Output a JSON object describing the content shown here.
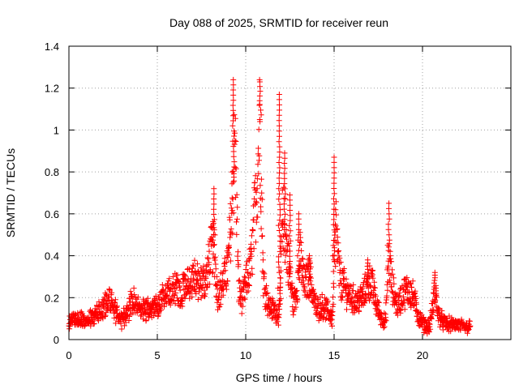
{
  "chart_data": {
    "type": "scatter",
    "title": "Day 088 of 2025, SRMTID for receiver reun",
    "xlabel": "GPS time / hours",
    "ylabel": "SRMTID / TECUs",
    "xlim": [
      0,
      25
    ],
    "ylim": [
      0,
      1.4
    ],
    "xticks": [
      0,
      5,
      10,
      15,
      20
    ],
    "xtick_labels": [
      "0",
      "5",
      "10",
      "15",
      "20"
    ],
    "yticks": [
      0,
      0.2,
      0.4,
      0.6,
      0.8,
      1.0,
      1.2,
      1.4
    ],
    "ytick_labels": [
      "0",
      "0.2",
      "0.4",
      "0.6",
      "0.8",
      "1",
      "1.2",
      "1.4"
    ],
    "grid": true,
    "marker": "+",
    "marker_color": "#ff0000",
    "x_range_of_data": [
      0,
      22.7
    ],
    "series": [
      {
        "name": "SRMTID",
        "approx_curve": {
          "x": [
            0.0,
            0.5,
            1.0,
            1.5,
            2.0,
            2.3,
            2.6,
            3.0,
            3.3,
            3.6,
            4.0,
            4.5,
            5.0,
            5.3,
            5.6,
            6.0,
            6.3,
            6.6,
            7.0,
            7.4,
            7.8,
            8.0,
            8.2,
            8.4,
            8.7,
            9.0,
            9.2,
            9.4,
            9.6,
            9.8,
            10.0,
            10.3,
            10.6,
            10.8,
            11.0,
            11.3,
            11.6,
            11.9,
            12.1,
            12.3,
            12.5,
            12.7,
            12.9,
            13.1,
            13.3,
            13.6,
            14.0,
            14.3,
            14.6,
            14.9,
            15.1,
            15.3,
            15.5,
            15.8,
            16.2,
            16.6,
            16.9,
            17.1,
            17.4,
            17.7,
            17.9,
            18.1,
            18.3,
            18.6,
            18.9,
            19.2,
            19.5,
            19.8,
            20.1,
            20.4,
            20.7,
            20.9,
            21.2,
            21.6,
            22.0,
            22.4,
            22.7
          ],
          "y": [
            0.08,
            0.1,
            0.09,
            0.12,
            0.16,
            0.2,
            0.14,
            0.09,
            0.14,
            0.18,
            0.15,
            0.14,
            0.16,
            0.2,
            0.22,
            0.24,
            0.22,
            0.26,
            0.3,
            0.26,
            0.3,
            0.4,
            0.45,
            0.22,
            0.26,
            0.35,
            0.6,
            0.95,
            0.25,
            0.18,
            0.26,
            0.36,
            0.7,
            1.05,
            0.28,
            0.16,
            0.14,
            0.12,
            0.6,
            0.45,
            0.3,
            0.16,
            0.25,
            0.4,
            0.26,
            0.3,
            0.14,
            0.16,
            0.14,
            0.1,
            0.55,
            0.3,
            0.26,
            0.22,
            0.18,
            0.2,
            0.26,
            0.28,
            0.16,
            0.1,
            0.08,
            0.4,
            0.24,
            0.16,
            0.22,
            0.24,
            0.2,
            0.1,
            0.07,
            0.06,
            0.22,
            0.12,
            0.08,
            0.07,
            0.07,
            0.06,
            0.06
          ]
        },
        "peaks": [
          {
            "x": 8.2,
            "y": 0.72
          },
          {
            "x": 9.3,
            "y": 1.24
          },
          {
            "x": 10.8,
            "y": 1.23
          },
          {
            "x": 11.9,
            "y": 1.17
          },
          {
            "x": 12.2,
            "y": 0.89
          },
          {
            "x": 12.5,
            "y": 0.69
          },
          {
            "x": 13.0,
            "y": 0.6
          },
          {
            "x": 13.6,
            "y": 0.4
          },
          {
            "x": 15.0,
            "y": 0.87
          },
          {
            "x": 16.9,
            "y": 0.38
          },
          {
            "x": 18.1,
            "y": 0.65
          },
          {
            "x": 20.7,
            "y": 0.32
          }
        ]
      }
    ]
  }
}
